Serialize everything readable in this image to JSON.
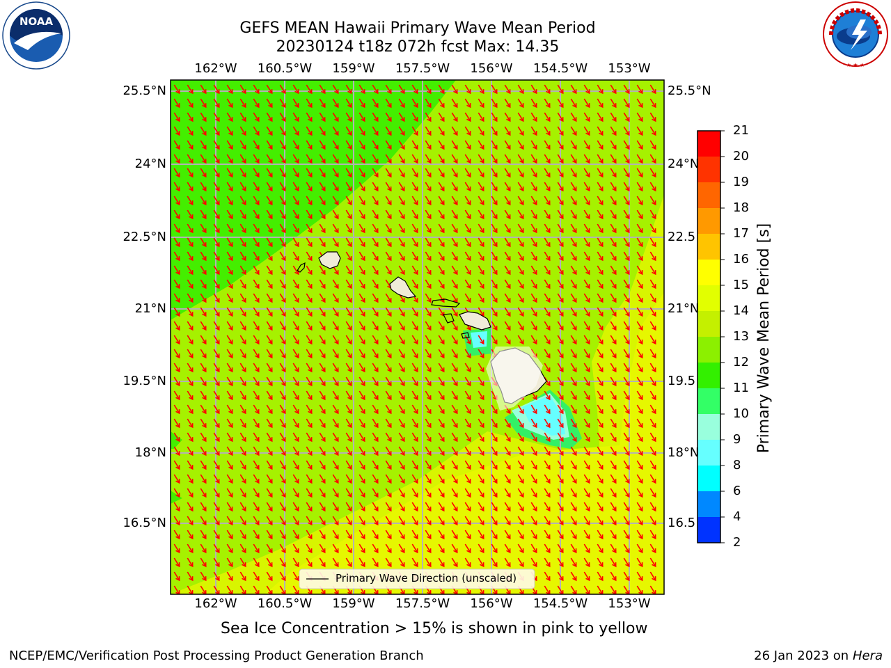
{
  "header": {
    "title_line1": "GEFS MEAN Hawaii Primary Wave Mean Period",
    "title_line2": "20230124 t18z 072h fcst   Max: 14.35"
  },
  "logos": {
    "left": "NOAA",
    "left_ring_text": "NATIONAL OCEANIC AND ATMOSPHERIC ADMINISTRATION · U.S. DEPARTMENT OF COMMERCE",
    "right_ring_text": "NATIONAL WEATHER SERVICE"
  },
  "map": {
    "lon_labels": [
      "162°W",
      "160.5°W",
      "159°W",
      "157.5°W",
      "156°W",
      "154.5°W",
      "153°W"
    ],
    "lat_labels": [
      "25.5°N",
      "24°N",
      "22.5°N",
      "21°N",
      "19.5°N",
      "18°N",
      "16.5°N"
    ],
    "lat_labels_right": [
      "25.5°N",
      "24°N",
      "22.5",
      "21°N",
      "19.5",
      "18°N",
      "16.5"
    ],
    "legend_label": "Primary Wave Direction (unscaled)",
    "arrow_color": "#ff0000"
  },
  "colorbar": {
    "label": "Primary Wave Mean Period [s]",
    "ticks": [
      "21",
      "20",
      "19",
      "18",
      "17",
      "16",
      "15",
      "14",
      "13",
      "12",
      "11",
      "10",
      "9",
      "8",
      "6",
      "4",
      "2"
    ],
    "colors": [
      "#ff0000",
      "#ff3300",
      "#ff6600",
      "#ff9900",
      "#ffc400",
      "#ffff00",
      "#e2ff00",
      "#c4f000",
      "#8cf000",
      "#33f000",
      "#33ff66",
      "#99ffdd",
      "#66ffff",
      "#00ffff",
      "#0088ff",
      "#0033ff",
      "#0000ff"
    ]
  },
  "caption": "Sea Ice Concentration > 15% is shown in pink to yellow",
  "footer": {
    "left": "NCEP/EMC/Verification Post Processing Product Generation Branch",
    "right_prefix": "26 Jan 2023 on ",
    "right_machine": "Hera"
  }
}
